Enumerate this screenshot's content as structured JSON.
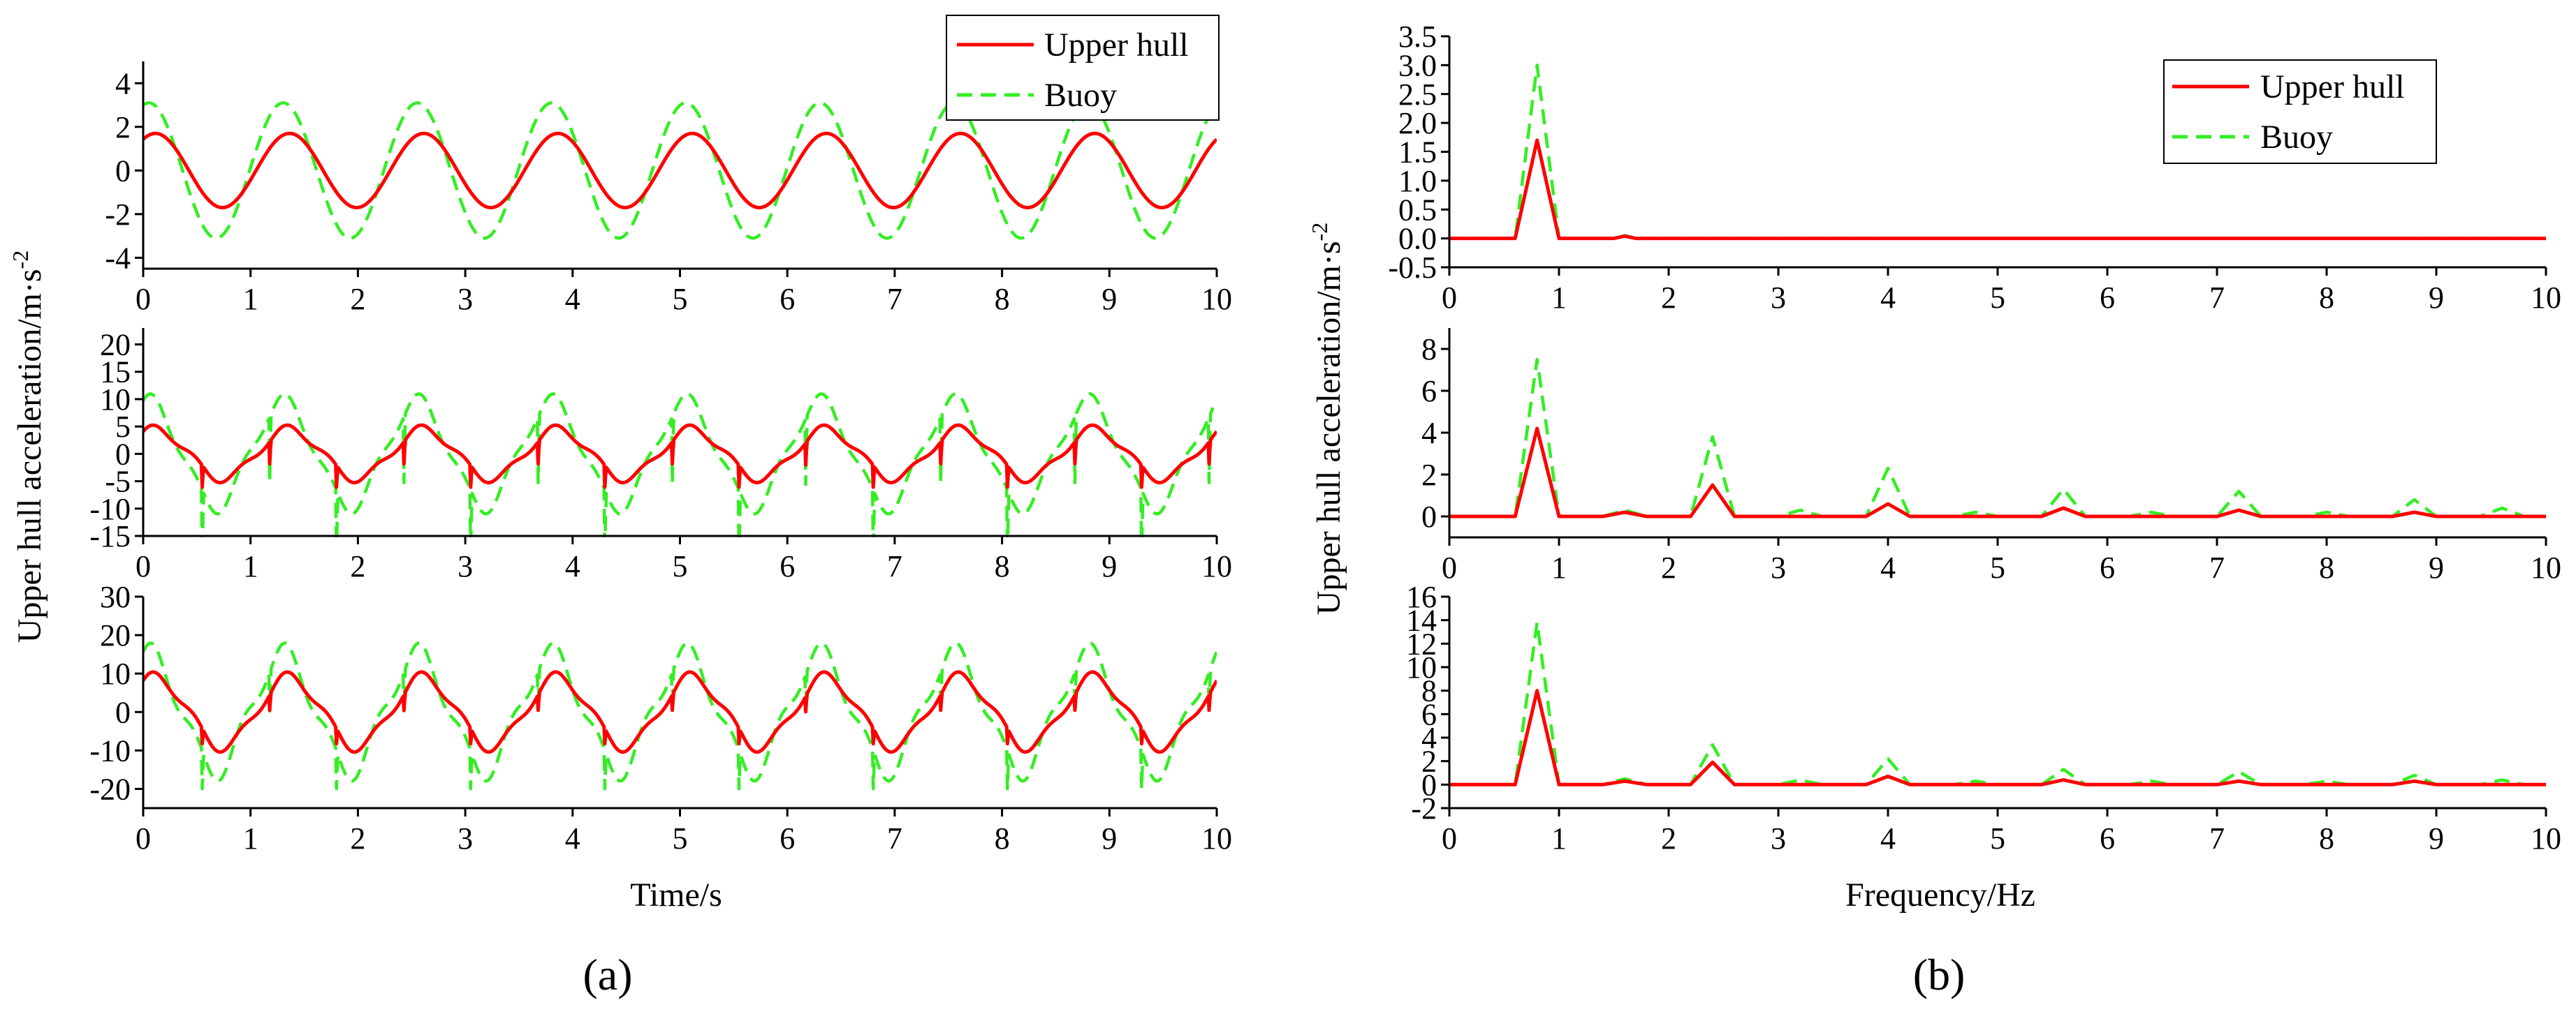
{
  "colors": {
    "upper_hull": "#ff0000",
    "buoy": "#33ee22"
  },
  "chart_data": [
    {
      "type": "line",
      "panel": "a",
      "row": 1,
      "ylim": [
        -4.5,
        5
      ],
      "yticks": [
        -4,
        -2,
        0,
        2,
        4
      ],
      "ytick_labels": [
        "-4",
        "-2",
        "0",
        "2",
        "4"
      ],
      "xlim": [
        0,
        10
      ],
      "xticks": [
        0,
        1,
        2,
        3,
        4,
        5,
        6,
        7,
        8,
        9,
        10
      ],
      "xtick_labels": [
        "0",
        "1",
        "2",
        "3",
        "4",
        "5",
        "6",
        "7",
        "8",
        "9",
        "10"
      ],
      "legend": "top-right",
      "series": [
        {
          "name": "Upper hull",
          "style": "solid",
          "amp": 1.7,
          "freq": 0.8,
          "phase": 1.0,
          "harm": 0,
          "spikes": 0
        },
        {
          "name": "Buoy",
          "style": "dashed",
          "amp": 3.1,
          "freq": 0.8,
          "phase": 1.3,
          "harm": 0,
          "spikes": 0
        }
      ]
    },
    {
      "type": "line",
      "panel": "a",
      "row": 2,
      "ylim": [
        -15,
        23
      ],
      "yticks": [
        -15,
        -10,
        -5,
        0,
        5,
        10,
        15,
        20
      ],
      "ytick_labels": [
        "-15",
        "-10",
        "-5",
        "0",
        "5",
        "10",
        "15",
        "20"
      ],
      "xlim": [
        0,
        10
      ],
      "xticks": [
        0,
        1,
        2,
        3,
        4,
        5,
        6,
        7,
        8,
        9,
        10
      ],
      "xtick_labels": [
        "0",
        "1",
        "2",
        "3",
        "4",
        "5",
        "6",
        "7",
        "8",
        "9",
        "10"
      ],
      "series": [
        {
          "name": "Upper hull",
          "style": "solid",
          "amp": 4.5,
          "freq": 0.8,
          "phase": 1.0,
          "harm": 0.8,
          "spikes": 4
        },
        {
          "name": "Buoy",
          "style": "dashed",
          "amp": 9.5,
          "freq": 0.8,
          "phase": 1.3,
          "harm": 1.5,
          "spikes": 12
        }
      ]
    },
    {
      "type": "line",
      "panel": "a",
      "row": 3,
      "ylim": [
        -25,
        30
      ],
      "yticks": [
        -20,
        -10,
        0,
        10,
        20,
        30
      ],
      "ytick_labels": [
        "-20",
        "-10",
        "0",
        "10",
        "20",
        "30"
      ],
      "xlim": [
        0,
        10
      ],
      "xticks": [
        0,
        1,
        2,
        3,
        4,
        5,
        6,
        7,
        8,
        9,
        10
      ],
      "xtick_labels": [
        "0",
        "1",
        "2",
        "3",
        "4",
        "5",
        "6",
        "7",
        "8",
        "9",
        "10"
      ],
      "xlabel": "Time/s",
      "series": [
        {
          "name": "Upper hull",
          "style": "solid",
          "amp": 9.0,
          "freq": 0.8,
          "phase": 1.0,
          "harm": 1.5,
          "spikes": 4
        },
        {
          "name": "Buoy",
          "style": "dashed",
          "amp": 15.0,
          "freq": 0.8,
          "phase": 1.3,
          "harm": 3.0,
          "spikes": 10
        }
      ]
    },
    {
      "type": "line",
      "panel": "b",
      "row": 1,
      "ylim": [
        -0.5,
        3.5
      ],
      "yticks": [
        -0.5,
        0,
        0.5,
        1,
        1.5,
        2,
        2.5,
        3,
        3.5
      ],
      "ytick_labels": [
        "-0.5",
        "0.0",
        "0.5",
        "1.0",
        "1.5",
        "2.0",
        "2.5",
        "3.0",
        "3.5"
      ],
      "xlim": [
        0,
        10
      ],
      "xticks": [
        0,
        1,
        2,
        3,
        4,
        5,
        6,
        7,
        8,
        9,
        10
      ],
      "xtick_labels": [
        "0",
        "1",
        "2",
        "3",
        "4",
        "5",
        "6",
        "7",
        "8",
        "9",
        "10"
      ],
      "legend": "top-right",
      "series": [
        {
          "name": "Upper hull",
          "style": "solid",
          "x": [
            0,
            0.6,
            0.8,
            1.0,
            1.5,
            1.6,
            1.7,
            10
          ],
          "y": [
            0,
            0,
            1.7,
            0,
            0,
            0.04,
            0,
            0
          ]
        },
        {
          "name": "Buoy",
          "style": "dashed",
          "x": [
            0,
            0.6,
            0.8,
            1.0,
            1.5,
            1.6,
            1.7,
            10
          ],
          "y": [
            0,
            0,
            3.0,
            0,
            0,
            0.05,
            0,
            0
          ]
        }
      ]
    },
    {
      "type": "line",
      "panel": "b",
      "row": 2,
      "ylim": [
        -1,
        9
      ],
      "yticks": [
        0,
        2,
        4,
        6,
        8
      ],
      "ytick_labels": [
        "0",
        "2",
        "4",
        "6",
        "8"
      ],
      "xlim": [
        0,
        10
      ],
      "xticks": [
        0,
        1,
        2,
        3,
        4,
        5,
        6,
        7,
        8,
        9,
        10
      ],
      "xtick_labels": [
        "0",
        "1",
        "2",
        "3",
        "4",
        "5",
        "6",
        "7",
        "8",
        "9",
        "10"
      ],
      "series": [
        {
          "name": "Upper hull",
          "style": "solid",
          "x": [
            0,
            0.6,
            0.8,
            1.0,
            1.4,
            1.6,
            1.8,
            2.2,
            2.4,
            2.6,
            3.8,
            4.0,
            4.2,
            5.4,
            5.6,
            5.8,
            7.0,
            7.2,
            7.4,
            8.6,
            8.8,
            9.0,
            10
          ],
          "y": [
            0,
            0,
            4.2,
            0,
            0,
            0.2,
            0,
            0,
            1.5,
            0,
            0,
            0.6,
            0,
            0,
            0.4,
            0,
            0,
            0.3,
            0,
            0,
            0.2,
            0,
            0
          ]
        },
        {
          "name": "Buoy",
          "style": "dashed",
          "x": [
            0,
            0.6,
            0.8,
            1.0,
            1.4,
            1.6,
            1.8,
            2.2,
            2.4,
            2.6,
            3.0,
            3.2,
            3.4,
            3.8,
            4.0,
            4.2,
            4.6,
            4.8,
            5.0,
            5.4,
            5.6,
            5.8,
            6.2,
            6.4,
            6.6,
            7.0,
            7.2,
            7.4,
            7.8,
            8.0,
            8.2,
            8.6,
            8.8,
            9.0,
            9.4,
            9.6,
            9.8,
            10
          ],
          "y": [
            0,
            0,
            7.5,
            0,
            0,
            0.3,
            0,
            0,
            3.8,
            0,
            0,
            0.3,
            0,
            0,
            2.3,
            0,
            0,
            0.2,
            0,
            0,
            1.3,
            0,
            0,
            0.2,
            0,
            0,
            1.2,
            0,
            0,
            0.2,
            0,
            0,
            0.8,
            0,
            0,
            0.4,
            0,
            0
          ]
        }
      ]
    },
    {
      "type": "line",
      "panel": "b",
      "row": 3,
      "ylim": [
        -2,
        16
      ],
      "yticks": [
        -2,
        0,
        2,
        4,
        6,
        8,
        10,
        12,
        14,
        16
      ],
      "ytick_labels": [
        "-2",
        "0",
        "2",
        "4",
        "6",
        "8",
        "10",
        "12",
        "14",
        "16"
      ],
      "xlim": [
        0,
        10
      ],
      "xticks": [
        0,
        1,
        2,
        3,
        4,
        5,
        6,
        7,
        8,
        9,
        10
      ],
      "xtick_labels": [
        "0",
        "1",
        "2",
        "3",
        "4",
        "5",
        "6",
        "7",
        "8",
        "9",
        "10"
      ],
      "xlabel": "Frequency/Hz",
      "series": [
        {
          "name": "Upper hull",
          "style": "solid",
          "x": [
            0,
            0.6,
            0.8,
            1.0,
            1.4,
            1.6,
            1.8,
            2.2,
            2.4,
            2.6,
            3.8,
            4.0,
            4.2,
            5.4,
            5.6,
            5.8,
            7.0,
            7.2,
            7.4,
            8.6,
            8.8,
            9.0,
            10
          ],
          "y": [
            0,
            0,
            8.0,
            0,
            0,
            0.3,
            0,
            0,
            1.9,
            0,
            0,
            0.7,
            0,
            0,
            0.4,
            0,
            0,
            0.3,
            0,
            0,
            0.3,
            0,
            0
          ]
        },
        {
          "name": "Buoy",
          "style": "dashed",
          "x": [
            0,
            0.6,
            0.8,
            1.0,
            1.4,
            1.6,
            1.8,
            2.2,
            2.4,
            2.6,
            3.0,
            3.2,
            3.4,
            3.8,
            4.0,
            4.2,
            4.6,
            4.8,
            5.0,
            5.4,
            5.6,
            5.8,
            6.2,
            6.4,
            6.6,
            7.0,
            7.2,
            7.4,
            7.8,
            8.0,
            8.2,
            8.6,
            8.8,
            9.0,
            9.4,
            9.6,
            9.8,
            10
          ],
          "y": [
            0,
            0,
            13.8,
            0,
            0,
            0.5,
            0,
            0,
            3.4,
            0,
            0,
            0.4,
            0,
            0,
            2.2,
            0,
            0,
            0.3,
            0,
            0,
            1.3,
            0,
            0,
            0.3,
            0,
            0,
            1.1,
            0,
            0,
            0.3,
            0,
            0,
            0.8,
            0,
            0,
            0.4,
            0,
            0
          ]
        }
      ]
    }
  ],
  "legend": {
    "upper_hull": "Upper hull",
    "buoy": "Buoy"
  },
  "labels": {
    "ylabel": "Upper hull acceleration/m·s",
    "ylabel_sup": "-2",
    "xlabel_a": "Time/s",
    "xlabel_b": "Frequency/Hz",
    "panel_a": "(a)",
    "panel_b": "(b)"
  }
}
